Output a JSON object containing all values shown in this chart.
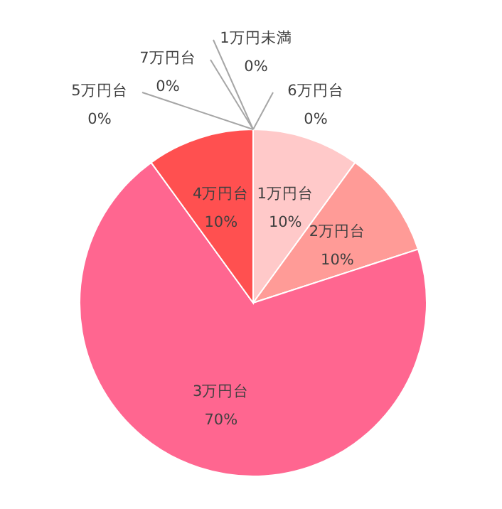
{
  "chart_data": {
    "type": "pie",
    "categories": [
      "1万円台",
      "2万円台",
      "3万円台",
      "4万円台",
      "5万円台",
      "6万円台",
      "7万円台",
      "1万円未満"
    ],
    "values": [
      10,
      10,
      70,
      10,
      0,
      0,
      0,
      0
    ],
    "colors": [
      "#ffc9c9",
      "#ff9b97",
      "#ff6690",
      "#ff5050",
      "#ff8c8c",
      "#ffb3b3",
      "#ff7070",
      "#ffdada"
    ],
    "value_labels": [
      "10%",
      "10%",
      "70%",
      "10%",
      "0%",
      "0%",
      "0%",
      "0%"
    ]
  }
}
